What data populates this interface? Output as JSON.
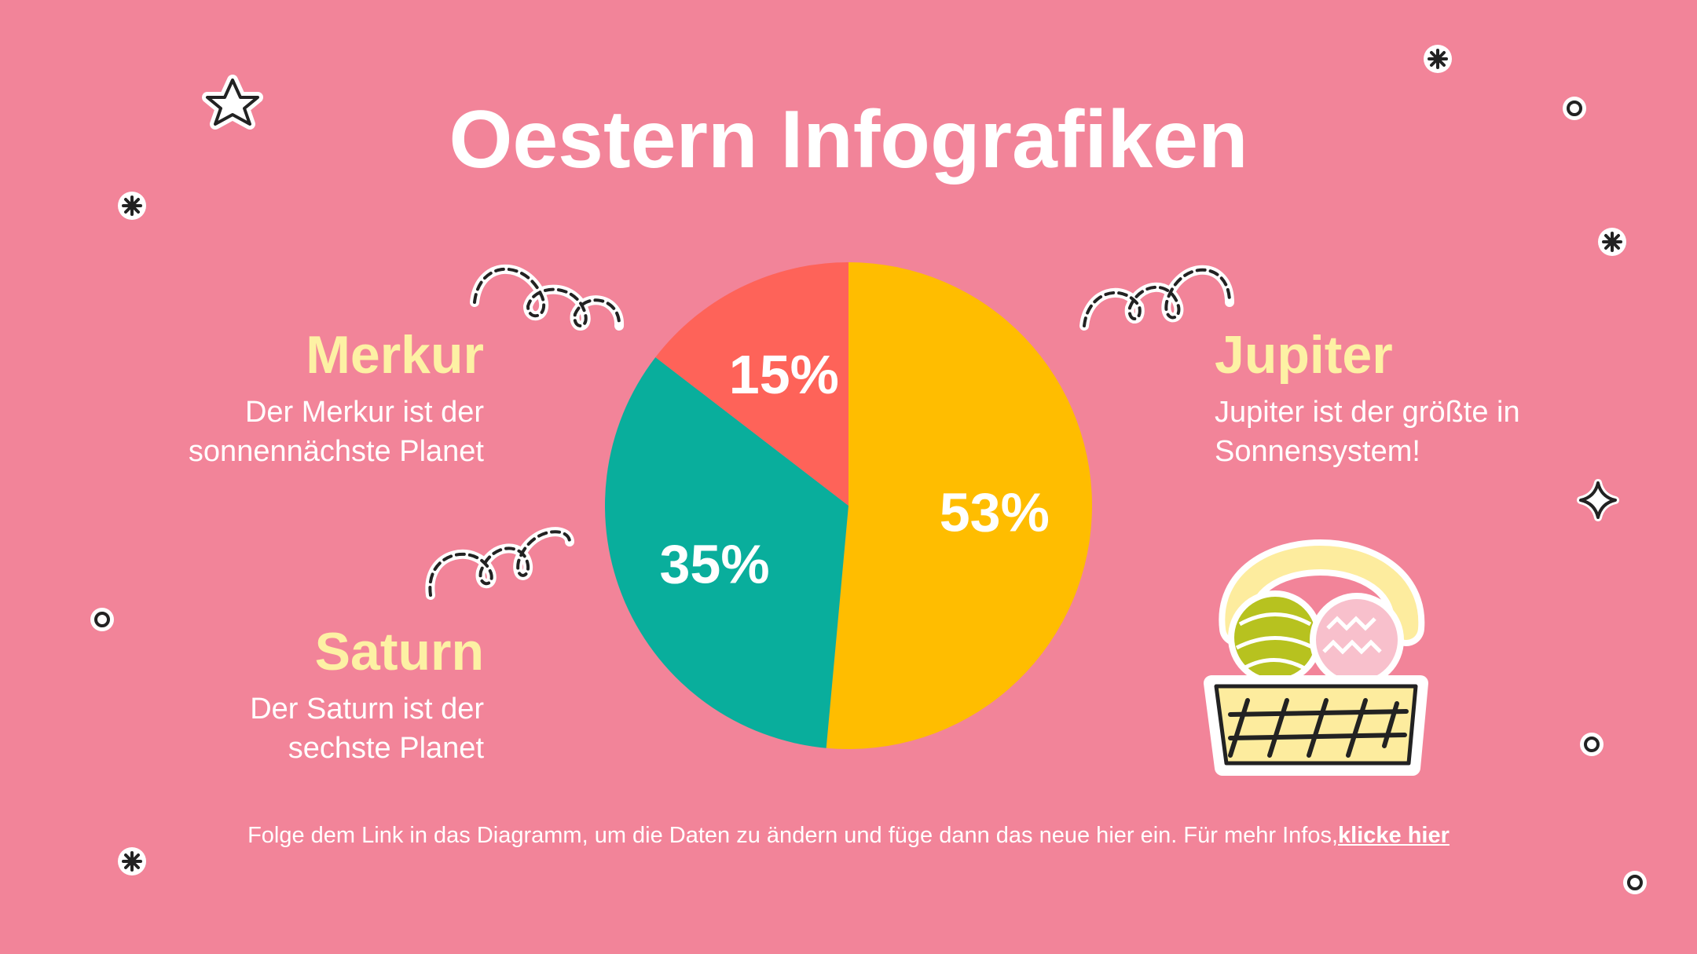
{
  "title": "Oestern Infografiken",
  "blocks": {
    "merkur": {
      "heading": "Merkur",
      "line1": "Der Merkur ist der",
      "line2": "sonnennächste Planet"
    },
    "saturn": {
      "heading": "Saturn",
      "line1": "Der Saturn ist der",
      "line2": "sechste Planet"
    },
    "jupiter": {
      "heading": "Jupiter",
      "line1": "Jupiter ist der größte in",
      "line2": "Sonnensystem!"
    }
  },
  "footer": {
    "text": "Folge dem Link in das Diagramm, um die Daten zu ändern und füge dann das neue hier ein. Für mehr Infos,",
    "link": "klicke hier"
  },
  "chart_data": {
    "type": "pie",
    "slices": [
      {
        "label": "53%",
        "value": 53,
        "color": "#ffbd00"
      },
      {
        "label": "35%",
        "value": 35,
        "color": "#09ae9c"
      },
      {
        "label": "15%",
        "value": 15,
        "color": "#fe6359"
      }
    ],
    "colors": {
      "background": "#f28499",
      "heading": "#fdf1a4",
      "text": "#ffffff"
    }
  }
}
